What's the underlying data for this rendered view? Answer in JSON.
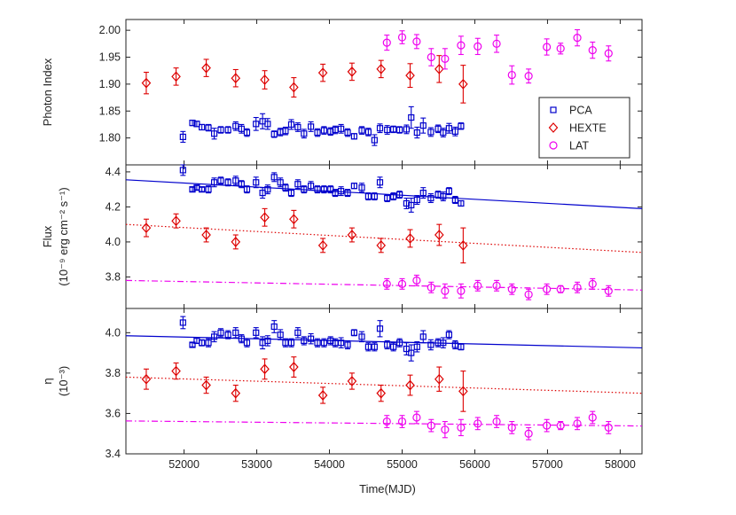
{
  "chart_data": {
    "type": "scatter",
    "xlabel": "Time(MJD)",
    "xlim": [
      51200,
      58300
    ],
    "xticks": [
      52000,
      53000,
      54000,
      55000,
      56000,
      57000,
      58000
    ],
    "colors": {
      "PCA": "#0000cc",
      "HEXTE": "#dd0000",
      "LAT": "#ee00ee",
      "axis": "#222222"
    },
    "legend": {
      "position": "top-right of top panel",
      "entries": [
        "PCA",
        "HEXTE",
        "LAT"
      ]
    },
    "panels": [
      {
        "key": "photon_index",
        "ylabel_lines": [
          "Photon Index"
        ],
        "ylim": [
          1.75,
          2.02
        ],
        "yticks": [
          1.8,
          1.85,
          1.9,
          1.95,
          2.0
        ],
        "ytick_labels": [
          "1.80",
          "1.85",
          "1.90",
          "1.95",
          "2.00"
        ],
        "series": [
          {
            "name": "PCA",
            "marker": "square",
            "x": [
              51985,
              52115,
              52175,
              52245,
              52335,
              52415,
              52505,
              52605,
              52710,
              52790,
              52865,
              52990,
              53080,
              53150,
              53240,
              53325,
              53395,
              53475,
              53565,
              53650,
              53745,
              53835,
              53925,
              54015,
              54080,
              54160,
              54250,
              54340,
              54445,
              54535,
              54620,
              54695,
              54795,
              54880,
              54965,
              55060,
              55125,
              55205,
              55290,
              55395,
              55495,
              55565,
              55645,
              55730,
              55810
            ],
            "y": [
              1.802,
              1.828,
              1.826,
              1.82,
              1.819,
              1.808,
              1.815,
              1.815,
              1.822,
              1.817,
              1.81,
              1.826,
              1.831,
              1.826,
              1.807,
              1.811,
              1.813,
              1.825,
              1.82,
              1.808,
              1.821,
              1.81,
              1.814,
              1.812,
              1.815,
              1.817,
              1.81,
              1.803,
              1.814,
              1.811,
              1.796,
              1.818,
              1.815,
              1.816,
              1.815,
              1.816,
              1.838,
              1.81,
              1.823,
              1.811,
              1.817,
              1.81,
              1.818,
              1.812,
              1.822
            ],
            "err": [
              0.01,
              0.005,
              0.005,
              0.005,
              0.006,
              0.01,
              0.006,
              0.006,
              0.008,
              0.008,
              0.007,
              0.012,
              0.014,
              0.01,
              0.006,
              0.007,
              0.007,
              0.009,
              0.008,
              0.008,
              0.009,
              0.007,
              0.007,
              0.007,
              0.007,
              0.008,
              0.007,
              0.005,
              0.007,
              0.007,
              0.01,
              0.008,
              0.008,
              0.006,
              0.006,
              0.008,
              0.02,
              0.01,
              0.014,
              0.008,
              0.007,
              0.008,
              0.009,
              0.008,
              0.006
            ]
          },
          {
            "name": "HEXTE",
            "marker": "diamond",
            "x": [
              51480,
              51890,
              52305,
              52710,
              53110,
              53510,
              53910,
              54310,
              54710,
              55110,
              55510,
              55840
            ],
            "y": [
              1.902,
              1.914,
              1.93,
              1.911,
              1.908,
              1.894,
              1.921,
              1.923,
              1.928,
              1.916,
              1.928,
              1.9
            ],
            "err": [
              0.02,
              0.016,
              0.016,
              0.016,
              0.017,
              0.018,
              0.016,
              0.016,
              0.016,
              0.022,
              0.025,
              0.035
            ]
          },
          {
            "name": "LAT",
            "marker": "circle",
            "x": [
              54790,
              55000,
              55200,
              55400,
              55590,
              55810,
              56040,
              56300,
              56510,
              56740,
              56990,
              57180,
              57410,
              57620,
              57840
            ],
            "y": [
              1.977,
              1.987,
              1.979,
              1.95,
              1.947,
              1.972,
              1.97,
              1.975,
              1.917,
              1.915,
              1.969,
              1.966,
              1.986,
              1.963,
              1.957
            ],
            "err": [
              0.014,
              0.012,
              0.013,
              0.016,
              0.019,
              0.017,
              0.015,
              0.016,
              0.017,
              0.013,
              0.015,
              0.01,
              0.015,
              0.015,
              0.014
            ]
          }
        ],
        "trends": []
      },
      {
        "key": "flux",
        "ylabel_lines": [
          "Flux",
          "(10⁻⁹ erg cm⁻² s⁻¹)"
        ],
        "ylim": [
          3.62,
          4.44
        ],
        "yticks": [
          3.8,
          4.0,
          4.2,
          4.4
        ],
        "ytick_labels": [
          "3.8",
          "4.0",
          "4.2",
          "4.4"
        ],
        "series": [
          {
            "name": "PCA",
            "marker": "square",
            "x": [
              51985,
              52115,
              52175,
              52245,
              52335,
              52415,
              52505,
              52605,
              52710,
              52790,
              52865,
              52990,
              53080,
              53150,
              53240,
              53325,
              53395,
              53475,
              53565,
              53650,
              53745,
              53835,
              53925,
              54015,
              54080,
              54160,
              54250,
              54340,
              54445,
              54535,
              54620,
              54695,
              54795,
              54880,
              54965,
              55060,
              55125,
              55205,
              55290,
              55395,
              55495,
              55565,
              55645,
              55730,
              55810
            ],
            "y": [
              4.41,
              4.3,
              4.31,
              4.3,
              4.3,
              4.34,
              4.35,
              4.34,
              4.35,
              4.33,
              4.3,
              4.34,
              4.28,
              4.3,
              4.37,
              4.34,
              4.31,
              4.28,
              4.33,
              4.3,
              4.32,
              4.3,
              4.3,
              4.3,
              4.28,
              4.29,
              4.28,
              4.32,
              4.31,
              4.26,
              4.26,
              4.34,
              4.25,
              4.26,
              4.27,
              4.22,
              4.21,
              4.24,
              4.28,
              4.25,
              4.27,
              4.26,
              4.29,
              4.24,
              4.22
            ],
            "err": [
              0.03,
              0.012,
              0.012,
              0.012,
              0.02,
              0.025,
              0.02,
              0.02,
              0.025,
              0.02,
              0.02,
              0.03,
              0.03,
              0.025,
              0.025,
              0.025,
              0.02,
              0.02,
              0.025,
              0.02,
              0.025,
              0.02,
              0.02,
              0.02,
              0.02,
              0.025,
              0.02,
              0.015,
              0.025,
              0.02,
              0.02,
              0.03,
              0.02,
              0.02,
              0.02,
              0.03,
              0.04,
              0.025,
              0.03,
              0.025,
              0.02,
              0.025,
              0.02,
              0.02,
              0.015
            ]
          },
          {
            "name": "HEXTE",
            "marker": "diamond",
            "x": [
              51480,
              51890,
              52305,
              52710,
              53110,
              53510,
              53910,
              54310,
              54710,
              55110,
              55510,
              55840
            ],
            "y": [
              4.08,
              4.12,
              4.04,
              4.0,
              4.14,
              4.13,
              3.98,
              4.04,
              3.98,
              4.02,
              4.04,
              3.98
            ],
            "err": [
              0.05,
              0.04,
              0.04,
              0.04,
              0.05,
              0.05,
              0.04,
              0.04,
              0.04,
              0.05,
              0.06,
              0.1
            ]
          },
          {
            "name": "LAT",
            "marker": "circle",
            "x": [
              54790,
              55000,
              55200,
              55400,
              55590,
              55810,
              56040,
              56300,
              56510,
              56740,
              56990,
              57180,
              57410,
              57620,
              57840
            ],
            "y": [
              3.76,
              3.76,
              3.78,
              3.74,
              3.72,
              3.72,
              3.75,
              3.75,
              3.73,
              3.7,
              3.73,
              3.73,
              3.74,
              3.76,
              3.72
            ],
            "err": [
              0.03,
              0.03,
              0.03,
              0.03,
              0.04,
              0.04,
              0.03,
              0.03,
              0.03,
              0.03,
              0.03,
              0.02,
              0.03,
              0.03,
              0.03
            ]
          }
        ],
        "trends": [
          {
            "name": "PCA",
            "style": "solid",
            "x": [
              51200,
              58300
            ],
            "y": [
              4.355,
              4.19
            ]
          },
          {
            "name": "HEXTE",
            "style": "dotted",
            "x": [
              51200,
              58300
            ],
            "y": [
              4.1,
              3.94
            ]
          },
          {
            "name": "LAT",
            "style": "dashdot",
            "x": [
              51200,
              58300
            ],
            "y": [
              3.78,
              3.725
            ]
          }
        ]
      },
      {
        "key": "eta",
        "ylabel_lines": [
          "η",
          "(10⁻³)"
        ],
        "ylim": [
          3.4,
          4.12
        ],
        "yticks": [
          3.4,
          3.6,
          3.8,
          4.0
        ],
        "ytick_labels": [
          "3.4",
          "3.6",
          "3.8",
          "4.0"
        ],
        "series": [
          {
            "name": "PCA",
            "marker": "square",
            "x": [
              51985,
              52115,
              52175,
              52245,
              52335,
              52415,
              52505,
              52605,
              52710,
              52790,
              52865,
              52990,
              53080,
              53150,
              53240,
              53325,
              53395,
              53475,
              53565,
              53650,
              53745,
              53835,
              53925,
              54015,
              54080,
              54160,
              54250,
              54340,
              54445,
              54535,
              54620,
              54695,
              54795,
              54880,
              54965,
              55060,
              55125,
              55205,
              55290,
              55395,
              55495,
              55565,
              55645,
              55730,
              55810
            ],
            "y": [
              4.05,
              3.94,
              3.96,
              3.95,
              3.95,
              3.98,
              4.0,
              3.99,
              4.0,
              3.97,
              3.95,
              4.0,
              3.95,
              3.96,
              4.03,
              3.99,
              3.95,
              3.95,
              4.0,
              3.96,
              3.97,
              3.95,
              3.95,
              3.96,
              3.95,
              3.95,
              3.94,
              4.0,
              3.98,
              3.93,
              3.93,
              4.02,
              3.94,
              3.93,
              3.95,
              3.92,
              3.9,
              3.93,
              3.98,
              3.94,
              3.95,
              3.95,
              3.99,
              3.94,
              3.93
            ],
            "err": [
              0.03,
              0.01,
              0.012,
              0.015,
              0.02,
              0.025,
              0.02,
              0.02,
              0.025,
              0.02,
              0.02,
              0.025,
              0.03,
              0.025,
              0.03,
              0.025,
              0.02,
              0.02,
              0.025,
              0.02,
              0.025,
              0.02,
              0.02,
              0.02,
              0.02,
              0.025,
              0.02,
              0.015,
              0.025,
              0.02,
              0.02,
              0.04,
              0.02,
              0.02,
              0.02,
              0.03,
              0.04,
              0.025,
              0.03,
              0.025,
              0.02,
              0.025,
              0.02,
              0.02,
              0.015
            ]
          },
          {
            "name": "HEXTE",
            "marker": "diamond",
            "x": [
              51480,
              51890,
              52305,
              52710,
              53110,
              53510,
              53910,
              54310,
              54710,
              55110,
              55510,
              55840
            ],
            "y": [
              3.77,
              3.81,
              3.74,
              3.7,
              3.82,
              3.83,
              3.69,
              3.76,
              3.7,
              3.74,
              3.77,
              3.71
            ],
            "err": [
              0.05,
              0.04,
              0.04,
              0.04,
              0.05,
              0.05,
              0.04,
              0.04,
              0.04,
              0.05,
              0.06,
              0.1
            ]
          },
          {
            "name": "LAT",
            "marker": "circle",
            "x": [
              54790,
              55000,
              55200,
              55400,
              55590,
              55810,
              56040,
              56300,
              56510,
              56740,
              56990,
              57180,
              57410,
              57620,
              57840
            ],
            "y": [
              3.56,
              3.56,
              3.58,
              3.54,
              3.52,
              3.53,
              3.55,
              3.56,
              3.53,
              3.5,
              3.54,
              3.54,
              3.55,
              3.58,
              3.53
            ],
            "err": [
              0.03,
              0.03,
              0.03,
              0.03,
              0.04,
              0.04,
              0.03,
              0.03,
              0.03,
              0.03,
              0.03,
              0.02,
              0.03,
              0.03,
              0.03
            ]
          }
        ],
        "trends": [
          {
            "name": "PCA",
            "style": "solid",
            "x": [
              51200,
              58300
            ],
            "y": [
              3.985,
              3.925
            ]
          },
          {
            "name": "HEXTE",
            "style": "dotted",
            "x": [
              51200,
              58300
            ],
            "y": [
              3.78,
              3.7
            ]
          },
          {
            "name": "LAT",
            "style": "dashdot",
            "x": [
              51200,
              58300
            ],
            "y": [
              3.563,
              3.538
            ]
          }
        ]
      }
    ]
  }
}
